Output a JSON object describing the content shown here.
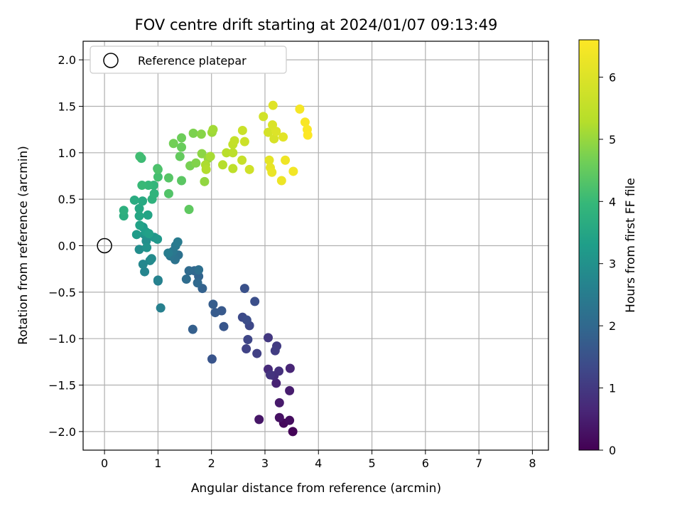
{
  "chart_data": {
    "type": "scatter",
    "title": "FOV centre drift starting at 2024/01/07 09:13:49",
    "xlabel": "Angular distance from reference (arcmin)",
    "ylabel": "Rotation from reference (arcmin)",
    "xlim": [
      -0.4,
      8.3
    ],
    "ylim": [
      -2.2,
      2.2
    ],
    "xticks": [
      0,
      1,
      2,
      3,
      4,
      5,
      6,
      7,
      8
    ],
    "yticks": [
      -2.0,
      -1.5,
      -1.0,
      -0.5,
      0.0,
      0.5,
      1.0,
      1.5,
      2.0
    ],
    "xtick_labels": [
      "0",
      "1",
      "2",
      "3",
      "4",
      "5",
      "6",
      "7",
      "8"
    ],
    "ytick_labels": [
      "−2.0",
      "−1.5",
      "−1.0",
      "−0.5",
      "0.0",
      "0.5",
      "1.0",
      "1.5",
      "2.0"
    ],
    "grid": true,
    "legend": {
      "location": "upper-left",
      "entries": [
        "Reference platepar"
      ]
    },
    "reference_point": {
      "x": 0.0,
      "y": 0.0,
      "marker": "open-circle",
      "color": "#000000"
    },
    "colorbar": {
      "label": "Hours from first FF file",
      "range": [
        0,
        6.6
      ],
      "ticks": [
        0,
        1,
        2,
        3,
        4,
        5,
        6
      ],
      "tick_labels": [
        "0",
        "1",
        "2",
        "3",
        "4",
        "5",
        "6"
      ],
      "colormap": "viridis"
    },
    "point_style": {
      "marker": "filled-circle"
    },
    "series": [
      {
        "points": [
          [
            3.52,
            -2.0,
            0.05
          ],
          [
            3.35,
            -1.91,
            0.13
          ],
          [
            3.46,
            -1.88,
            0.2
          ],
          [
            3.27,
            -1.85,
            0.27
          ],
          [
            2.89,
            -1.87,
            0.35
          ],
          [
            3.27,
            -1.69,
            0.42
          ],
          [
            3.46,
            -1.56,
            0.48
          ],
          [
            3.21,
            -1.48,
            0.56
          ],
          [
            3.47,
            -1.32,
            0.62
          ],
          [
            3.06,
            -1.33,
            0.7
          ],
          [
            3.17,
            -1.4,
            0.77
          ],
          [
            3.26,
            -1.35,
            0.83
          ],
          [
            3.1,
            -1.39,
            0.9
          ],
          [
            3.06,
            -0.99,
            0.97
          ],
          [
            3.22,
            -1.08,
            1.03
          ],
          [
            3.19,
            -1.13,
            1.08
          ],
          [
            2.85,
            -1.16,
            1.14
          ],
          [
            2.65,
            -1.11,
            1.2
          ],
          [
            2.68,
            -1.01,
            1.25
          ],
          [
            2.71,
            -0.86,
            1.3
          ],
          [
            2.58,
            -0.77,
            1.35
          ],
          [
            2.66,
            -0.8,
            1.4
          ],
          [
            2.81,
            -0.6,
            1.45
          ],
          [
            2.62,
            -0.46,
            1.5
          ],
          [
            2.01,
            -1.22,
            1.55
          ],
          [
            2.23,
            -0.87,
            1.6
          ],
          [
            2.19,
            -0.7,
            1.65
          ],
          [
            2.07,
            -0.72,
            1.7
          ],
          [
            2.03,
            -0.63,
            1.75
          ],
          [
            1.65,
            -0.9,
            1.8
          ],
          [
            1.83,
            -0.46,
            1.85
          ],
          [
            1.76,
            -0.33,
            1.9
          ],
          [
            1.68,
            -0.27,
            1.95
          ],
          [
            1.74,
            -0.4,
            2.0
          ],
          [
            1.58,
            -0.27,
            2.05
          ],
          [
            1.53,
            -0.36,
            2.1
          ],
          [
            1.76,
            -0.26,
            2.15
          ],
          [
            1.38,
            -0.1,
            2.2
          ],
          [
            1.32,
            -0.15,
            2.25
          ],
          [
            1.23,
            -0.11,
            2.3
          ],
          [
            1.28,
            -0.06,
            2.35
          ],
          [
            1.33,
            0.0,
            2.4
          ],
          [
            1.37,
            0.04,
            2.45
          ],
          [
            1.19,
            -0.08,
            2.5
          ],
          [
            1.0,
            -0.38,
            2.55
          ],
          [
            1.05,
            -0.67,
            2.6
          ],
          [
            1.0,
            -0.37,
            2.65
          ],
          [
            0.75,
            -0.28,
            2.7
          ],
          [
            0.72,
            -0.2,
            2.75
          ],
          [
            0.85,
            -0.16,
            2.8
          ],
          [
            0.88,
            -0.14,
            2.85
          ],
          [
            0.65,
            -0.04,
            2.9
          ],
          [
            0.78,
            0.05,
            2.95
          ],
          [
            0.75,
            0.12,
            3.0
          ],
          [
            0.79,
            -0.02,
            3.05
          ],
          [
            0.93,
            0.09,
            3.1
          ],
          [
            0.99,
            0.07,
            3.15
          ],
          [
            0.72,
            0.2,
            3.2
          ],
          [
            0.6,
            0.12,
            3.25
          ],
          [
            0.77,
            0.15,
            3.3
          ],
          [
            0.83,
            0.13,
            3.35
          ],
          [
            0.66,
            0.22,
            3.4
          ],
          [
            0.81,
            0.33,
            3.45
          ],
          [
            0.65,
            0.32,
            3.5
          ],
          [
            0.65,
            0.4,
            3.55
          ],
          [
            0.71,
            0.48,
            3.6
          ],
          [
            0.56,
            0.49,
            3.65
          ],
          [
            0.36,
            0.32,
            3.7
          ],
          [
            0.36,
            0.38,
            3.75
          ],
          [
            0.89,
            0.5,
            3.8
          ],
          [
            0.93,
            0.56,
            3.85
          ],
          [
            0.92,
            0.65,
            3.9
          ],
          [
            0.82,
            0.65,
            3.95
          ],
          [
            0.7,
            0.65,
            4.0
          ],
          [
            0.69,
            0.94,
            4.05
          ],
          [
            0.66,
            0.96,
            4.1
          ],
          [
            1.0,
            0.74,
            4.15
          ],
          [
            0.99,
            0.83,
            4.2
          ],
          [
            1.0,
            0.82,
            4.25
          ],
          [
            1.2,
            0.56,
            4.3
          ],
          [
            1.2,
            0.73,
            4.35
          ],
          [
            1.44,
            0.7,
            4.4
          ],
          [
            1.58,
            0.39,
            4.45
          ],
          [
            1.41,
            0.96,
            4.5
          ],
          [
            1.44,
            1.06,
            4.55
          ],
          [
            1.44,
            1.16,
            4.6
          ],
          [
            1.29,
            1.1,
            4.65
          ],
          [
            1.6,
            0.86,
            4.7
          ],
          [
            1.66,
            1.21,
            4.75
          ],
          [
            1.71,
            0.89,
            4.8
          ],
          [
            1.81,
            1.2,
            4.85
          ],
          [
            1.82,
            0.99,
            4.9
          ],
          [
            1.87,
            0.69,
            4.95
          ],
          [
            1.94,
            0.94,
            5.0
          ],
          [
            2.01,
            1.22,
            5.05
          ],
          [
            2.03,
            1.25,
            5.1
          ],
          [
            1.98,
            0.96,
            5.15
          ],
          [
            1.89,
            0.87,
            5.2
          ],
          [
            1.9,
            0.82,
            5.25
          ],
          [
            2.21,
            0.87,
            5.3
          ],
          [
            2.28,
            1.0,
            5.35
          ],
          [
            2.4,
            1.0,
            5.4
          ],
          [
            2.4,
            0.83,
            5.45
          ],
          [
            2.4,
            1.09,
            5.5
          ],
          [
            2.43,
            1.13,
            5.55
          ],
          [
            2.57,
            0.92,
            5.6
          ],
          [
            2.58,
            1.24,
            5.65
          ],
          [
            2.62,
            1.12,
            5.7
          ],
          [
            2.71,
            0.82,
            5.75
          ],
          [
            2.97,
            1.39,
            5.8
          ],
          [
            3.06,
            1.22,
            5.85
          ],
          [
            3.17,
            1.15,
            5.9
          ],
          [
            3.14,
            1.3,
            5.95
          ],
          [
            3.21,
            1.23,
            6.0
          ],
          [
            3.15,
            1.51,
            6.05
          ],
          [
            3.34,
            1.17,
            6.1
          ],
          [
            3.08,
            0.92,
            6.15
          ],
          [
            3.1,
            0.84,
            6.2
          ],
          [
            3.13,
            0.79,
            6.25
          ],
          [
            3.31,
            0.7,
            6.3
          ],
          [
            3.38,
            0.92,
            6.35
          ],
          [
            3.53,
            0.8,
            6.4
          ],
          [
            3.65,
            1.47,
            6.45
          ],
          [
            3.75,
            1.33,
            6.5
          ],
          [
            3.79,
            1.25,
            6.55
          ],
          [
            3.8,
            1.19,
            6.58
          ]
        ]
      }
    ]
  }
}
